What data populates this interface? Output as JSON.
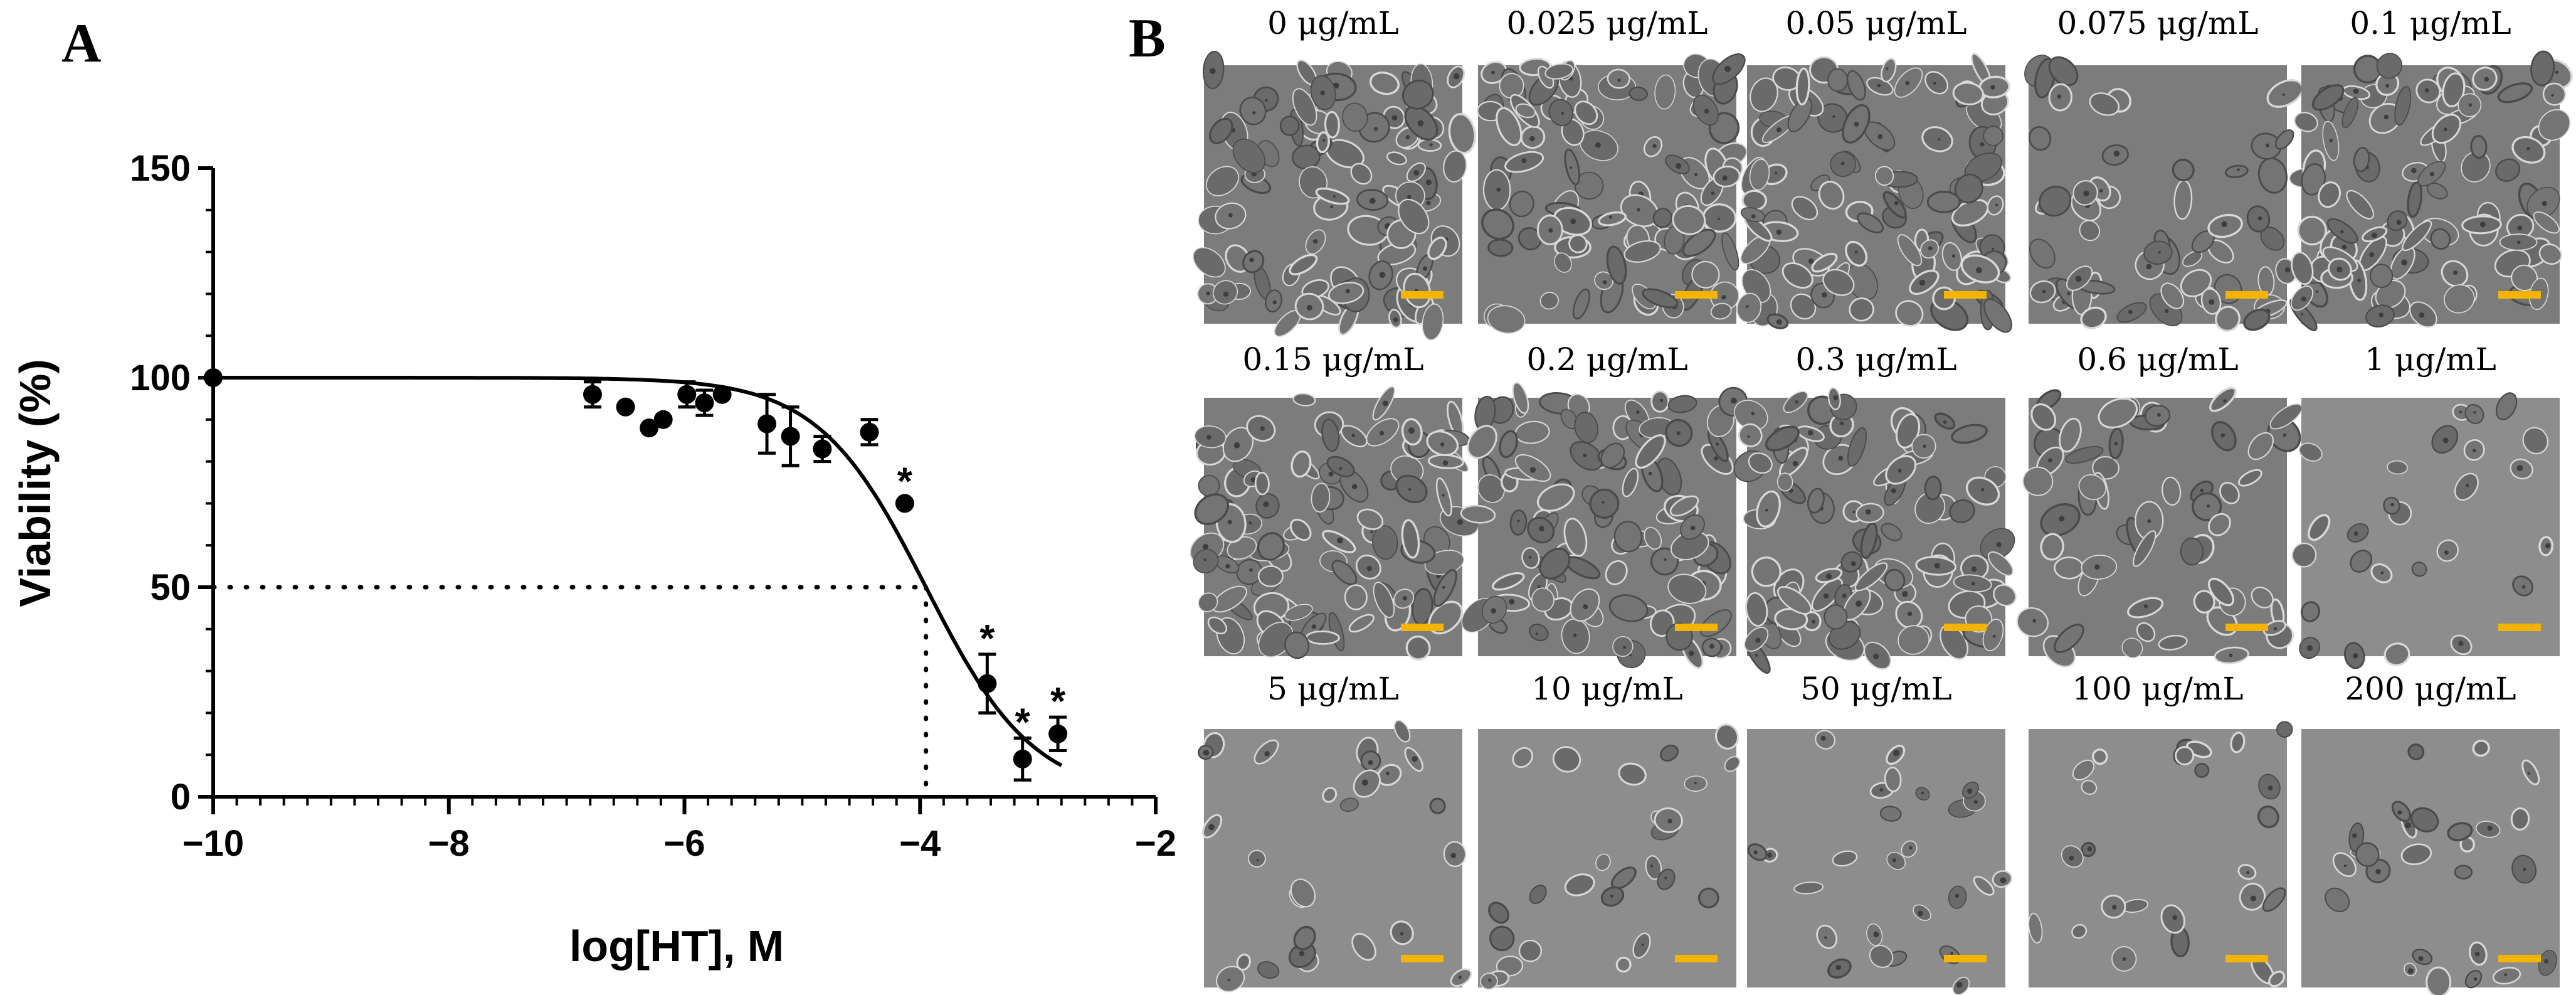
{
  "panel_a": {
    "letter": "A",
    "chart_data": {
      "type": "scatter",
      "xlabel": "log[HT], M",
      "ylabel": "Viability (%)",
      "xlim": [
        -10,
        -2
      ],
      "ylim": [
        0,
        150
      ],
      "x_ticks": [
        "−10",
        "−8",
        "−6",
        "−4",
        "−2"
      ],
      "y_ticks": [
        "0",
        "50",
        "100",
        "150"
      ],
      "grid": false,
      "points": [
        {
          "x": -10.0,
          "y": 100,
          "err": 0
        },
        {
          "x": -6.78,
          "y": 96,
          "err": 3
        },
        {
          "x": -6.5,
          "y": 93,
          "err": 0
        },
        {
          "x": -6.3,
          "y": 88,
          "err": 0
        },
        {
          "x": -6.18,
          "y": 90,
          "err": 0
        },
        {
          "x": -5.98,
          "y": 96,
          "err": 3
        },
        {
          "x": -5.83,
          "y": 94,
          "err": 3
        },
        {
          "x": -5.68,
          "y": 96,
          "err": 0
        },
        {
          "x": -5.3,
          "y": 89,
          "err": 7
        },
        {
          "x": -5.1,
          "y": 86,
          "err": 7
        },
        {
          "x": -4.83,
          "y": 83,
          "err": 3
        },
        {
          "x": -4.43,
          "y": 87,
          "err": 3
        },
        {
          "x": -4.13,
          "y": 70,
          "err": 0,
          "mark": "*"
        },
        {
          "x": -3.43,
          "y": 27,
          "err": 7,
          "mark": "*"
        },
        {
          "x": -3.13,
          "y": 9,
          "err": 5,
          "mark": "*"
        },
        {
          "x": -2.83,
          "y": 15,
          "err": 4,
          "mark": "*"
        }
      ],
      "fit": {
        "top": 100,
        "bottom": 0,
        "log_ic50": -3.95,
        "hill_slope": -0.95
      },
      "ic50_guide": {
        "y": 50,
        "x": -3.95
      }
    }
  },
  "panel_b": {
    "letter": "B",
    "images": [
      {
        "label": "0 μg/mL",
        "density": "dense"
      },
      {
        "label": "0.025 μg/mL",
        "density": "dense"
      },
      {
        "label": "0.05 μg/mL",
        "density": "dense"
      },
      {
        "label": "0.075 μg/mL",
        "density": "medium"
      },
      {
        "label": "0.1 μg/mL",
        "density": "dense"
      },
      {
        "label": "0.15 μg/mL",
        "density": "dense"
      },
      {
        "label": "0.2 μg/mL",
        "density": "dense"
      },
      {
        "label": "0.3 μg/mL",
        "density": "dense"
      },
      {
        "label": "0.6 μg/mL",
        "density": "medium"
      },
      {
        "label": "1 μg/mL",
        "density": "sparse"
      },
      {
        "label": "5 μg/mL",
        "density": "sparse"
      },
      {
        "label": "10 μg/mL",
        "density": "sparse"
      },
      {
        "label": "50 μg/mL",
        "density": "sparse"
      },
      {
        "label": "100 μg/mL",
        "density": "sparse"
      },
      {
        "label": "200 μg/mL",
        "density": "sparse"
      }
    ],
    "scale_bar_color": "#f5b400"
  }
}
